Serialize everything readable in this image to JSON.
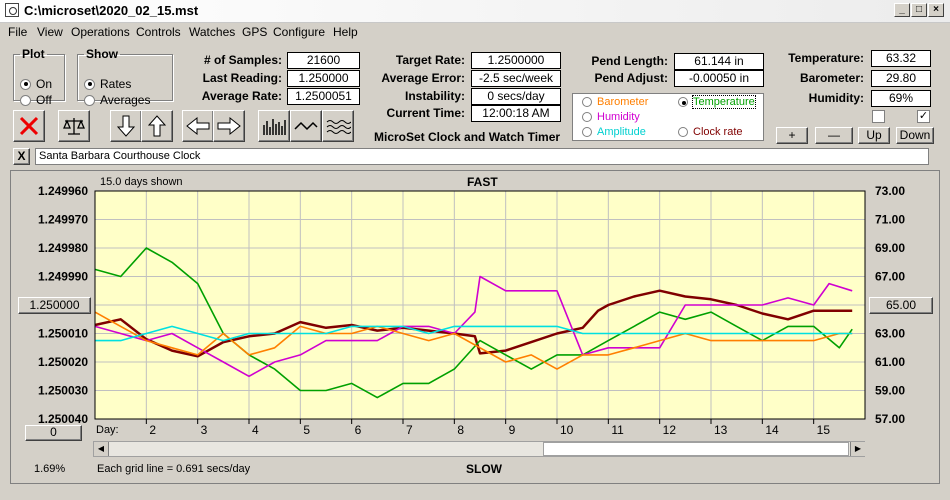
{
  "window": {
    "title": "C:\\microset\\2020_02_15.mst"
  },
  "menu": [
    "File",
    "View",
    "Operations",
    "Controls",
    "Watches",
    "GPS",
    "Configure",
    "Help"
  ],
  "plot": {
    "legend": "Plot",
    "on": "On",
    "off": "Off",
    "selected": "On"
  },
  "show": {
    "legend": "Show",
    "rates": "Rates",
    "averages": "Averages",
    "selected": "Rates"
  },
  "stats": {
    "samples_label": "# of Samples:",
    "samples": "21600",
    "last_label": "Last Reading:",
    "last": "1.250000",
    "avg_label": "Average Rate:",
    "avg": "1.2500051",
    "target_label": "Target Rate:",
    "target": "1.2500000",
    "avgerr_label": "Average Error:",
    "avgerr": "-2.5 sec/week",
    "instab_label": "Instability:",
    "instab": "0 secs/day",
    "time_label": "Current Time:",
    "time": "12:00:18 AM",
    "pendlen_label": "Pend Length:",
    "pendlen": "61.144 in",
    "pendadj_label": "Pend Adjust:",
    "pendadj": "-0.00050 in",
    "temp_label": "Temperature:",
    "temp": "63.32",
    "baro_label": "Barometer:",
    "baro": "29.80",
    "hum_label": "Humidity:",
    "hum": "69%"
  },
  "app_name": "MicroSet Clock and Watch Timer",
  "sensors": [
    {
      "label": "Barometer",
      "color": "#ff7f00",
      "selected": false
    },
    {
      "label": "Temperature",
      "color": "#00a000",
      "selected": true
    },
    {
      "label": "Humidity",
      "color": "#d000d0",
      "selected": false
    },
    {
      "label": "Amplitude",
      "color": "#00d0d0",
      "selected": false
    },
    {
      "label": "Clock rate",
      "color": "#800000",
      "selected": false
    }
  ],
  "adjust_buttons": {
    "plus": "+",
    "minus": "—",
    "up": "Up",
    "down": "Down"
  },
  "clock_name": "Santa Barbara Courthouse Clock",
  "close_glyph": "X",
  "chart_header": {
    "days_shown": "15.0 days shown",
    "top": "FAST",
    "bottom": "SLOW"
  },
  "left_value_button": "1.250000",
  "right_value_button": "65.00",
  "zero_button": "0",
  "percent": "1.69%",
  "grid_note": "Each grid line = 0.691 secs/day",
  "icons": [
    "stop-x-icon",
    "balance-scale-icon",
    "arrow-down-icon",
    "arrow-up-icon",
    "arrow-left-icon",
    "arrow-right-icon",
    "bar-graph-icon",
    "wave-icon",
    "ripple-icon"
  ],
  "chart_data": {
    "type": "line",
    "title": "FAST",
    "xlabel": "Day:",
    "x_ticks": [
      "2",
      "3",
      "4",
      "5",
      "6",
      "7",
      "8",
      "9",
      "10",
      "11",
      "12",
      "13",
      "14",
      "15"
    ],
    "xlim": [
      1,
      16
    ],
    "y_left": {
      "ticks": [
        "1.249960",
        "1.249970",
        "1.249980",
        "1.249990",
        "1.250000",
        "1.250010",
        "1.250020",
        "1.250030",
        "1.250040"
      ],
      "ylim": [
        1.24996,
        1.25004
      ],
      "inverted": true
    },
    "y_right": {
      "ticks": [
        "73.00",
        "71.00",
        "69.00",
        "67.00",
        "65.00",
        "63.00",
        "61.00",
        "59.00",
        "57.00"
      ],
      "ylim": [
        57,
        73
      ]
    },
    "background": "#ffffc8",
    "series": [
      {
        "color": "#800000",
        "axis": "left",
        "x": [
          1,
          1.5,
          2,
          2.5,
          3,
          3.5,
          4,
          4.5,
          5,
          5.5,
          6,
          6.5,
          7,
          7.5,
          8,
          8.4,
          8.5,
          9,
          9.5,
          10,
          10.5,
          10.8,
          11,
          11.5,
          12,
          12.5,
          13,
          13.5,
          14,
          14.5,
          15,
          15.5,
          15.75
        ],
        "y": [
          1.250007,
          1.250005,
          1.250012,
          1.250016,
          1.250018,
          1.250013,
          1.250011,
          1.25001,
          1.250006,
          1.250008,
          1.250007,
          1.250009,
          1.250008,
          1.250009,
          1.25001,
          1.250011,
          1.250017,
          1.250016,
          1.250013,
          1.25001,
          1.250008,
          1.250002,
          1.25,
          1.249997,
          1.249995,
          1.249997,
          1.249998,
          1.25,
          1.250003,
          1.250005,
          1.250002,
          1.250002,
          1.250002
        ]
      },
      {
        "color": "#00a000",
        "axis": "right",
        "x": [
          1,
          1.5,
          2,
          2.5,
          3,
          3.5,
          4,
          4.5,
          5,
          5.5,
          6,
          6.5,
          7,
          7.5,
          8,
          8.5,
          9,
          9.5,
          10,
          10.5,
          11,
          11.5,
          12,
          12.5,
          13,
          13.5,
          14,
          14.5,
          15,
          15.5,
          15.75
        ],
        "y": [
          67.5,
          67.0,
          69.0,
          68.0,
          66.5,
          63.0,
          61.5,
          60.5,
          59.0,
          59.0,
          59.5,
          58.5,
          59.5,
          59.5,
          60.5,
          62.5,
          61.5,
          60.5,
          61.5,
          61.5,
          62.5,
          63.5,
          64.5,
          64.0,
          64.5,
          63.5,
          62.5,
          63.5,
          63.5,
          62.0,
          63.3
        ]
      },
      {
        "color": "#d000d0",
        "axis": "right",
        "x": [
          1,
          1.5,
          2,
          2.5,
          3,
          3.5,
          4,
          4.5,
          5,
          5.5,
          6,
          6.5,
          7,
          7.5,
          8,
          8.4,
          8.5,
          9,
          9.5,
          10,
          10.5,
          11,
          11.5,
          12,
          12.5,
          13,
          13.5,
          14,
          14.5,
          15,
          15.3,
          15.75
        ],
        "y": [
          63.5,
          63.0,
          62.5,
          63.0,
          62.0,
          61.0,
          60.0,
          61.0,
          61.5,
          62.5,
          62.5,
          62.5,
          63.5,
          63.5,
          63.0,
          64.5,
          67.0,
          66.0,
          66.0,
          66.0,
          61.5,
          62.0,
          62.0,
          62.0,
          65.0,
          65.0,
          65.0,
          65.0,
          65.5,
          65.0,
          66.5,
          66.0
        ]
      },
      {
        "color": "#ff7f00",
        "axis": "right",
        "x": [
          1,
          1.5,
          2,
          2.5,
          3,
          3.5,
          4,
          4.5,
          5,
          5.5,
          6,
          6.5,
          7,
          7.5,
          8,
          8.5,
          9,
          9.5,
          10,
          10.5,
          11,
          11.5,
          12,
          12.5,
          13,
          13.5,
          14,
          14.5,
          15,
          15.5,
          15.75
        ],
        "y": [
          64.5,
          63.5,
          62.5,
          62.0,
          61.5,
          63.0,
          61.5,
          62.0,
          63.5,
          63.0,
          63.0,
          63.5,
          63.0,
          62.5,
          63.0,
          62.0,
          61.0,
          61.5,
          60.5,
          61.5,
          61.5,
          62.0,
          62.5,
          63.0,
          62.5,
          62.5,
          62.5,
          62.5,
          62.5,
          63.0,
          63.0
        ]
      },
      {
        "color": "#00e0e0",
        "axis": "right",
        "x": [
          1,
          1.5,
          2,
          2.5,
          3,
          3.5,
          4,
          4.5,
          5,
          5.5,
          6,
          6.5,
          7,
          7.5,
          8,
          8.5,
          9,
          9.5,
          10,
          10.5,
          11,
          11.5,
          12,
          12.5,
          13,
          13.5,
          14,
          14.5,
          15,
          15.5,
          15.75
        ],
        "y": [
          62.5,
          62.5,
          63.0,
          63.5,
          63.0,
          62.5,
          63.0,
          63.0,
          63.0,
          63.0,
          63.5,
          63.5,
          63.5,
          63.0,
          63.5,
          63.5,
          63.5,
          63.5,
          63.5,
          63.0,
          63.0,
          63.0,
          63.0,
          63.0,
          63.0,
          63.0,
          63.0,
          63.0,
          63.0,
          63.0,
          63.0
        ]
      }
    ]
  }
}
